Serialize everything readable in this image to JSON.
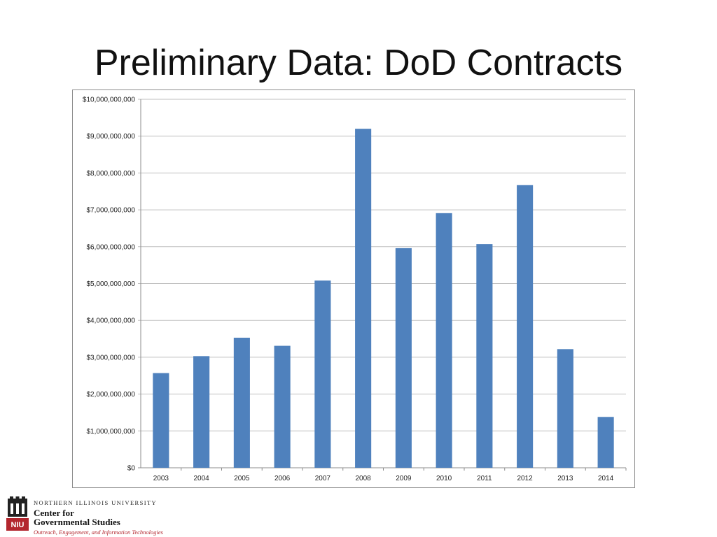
{
  "slide": {
    "title": "Preliminary Data: DoD Contracts"
  },
  "footer": {
    "university": "NORTHERN ILLINOIS UNIVERSITY",
    "center_line1": "Center for",
    "center_line2": "Governmental Studies",
    "tagline": "Outreach, Engagement, and Information Technologies",
    "logo_text": "NIU"
  },
  "colors": {
    "bar": "#4F81BD",
    "grid": "#bfbfbf",
    "brand_red": "#b3262e"
  },
  "chart_data": {
    "type": "bar",
    "title": "",
    "xlabel": "",
    "ylabel": "",
    "categories": [
      "2003",
      "2004",
      "2005",
      "2006",
      "2007",
      "2008",
      "2009",
      "2010",
      "2011",
      "2012",
      "2013",
      "2014"
    ],
    "values": [
      2570000000,
      3030000000,
      3530000000,
      3310000000,
      5080000000,
      9200000000,
      5960000000,
      6910000000,
      6070000000,
      7670000000,
      3220000000,
      1380000000
    ],
    "ylim": [
      0,
      10000000000
    ],
    "yticks": [
      0,
      1000000000,
      2000000000,
      3000000000,
      4000000000,
      5000000000,
      6000000000,
      7000000000,
      8000000000,
      9000000000,
      10000000000
    ],
    "ytick_labels": [
      "$0",
      "$1,000,000,000",
      "$2,000,000,000",
      "$3,000,000,000",
      "$4,000,000,000",
      "$5,000,000,000",
      "$6,000,000,000",
      "$7,000,000,000",
      "$8,000,000,000",
      "$9,000,000,000",
      "$10,000,000,000"
    ],
    "grid": true,
    "legend": "none"
  }
}
